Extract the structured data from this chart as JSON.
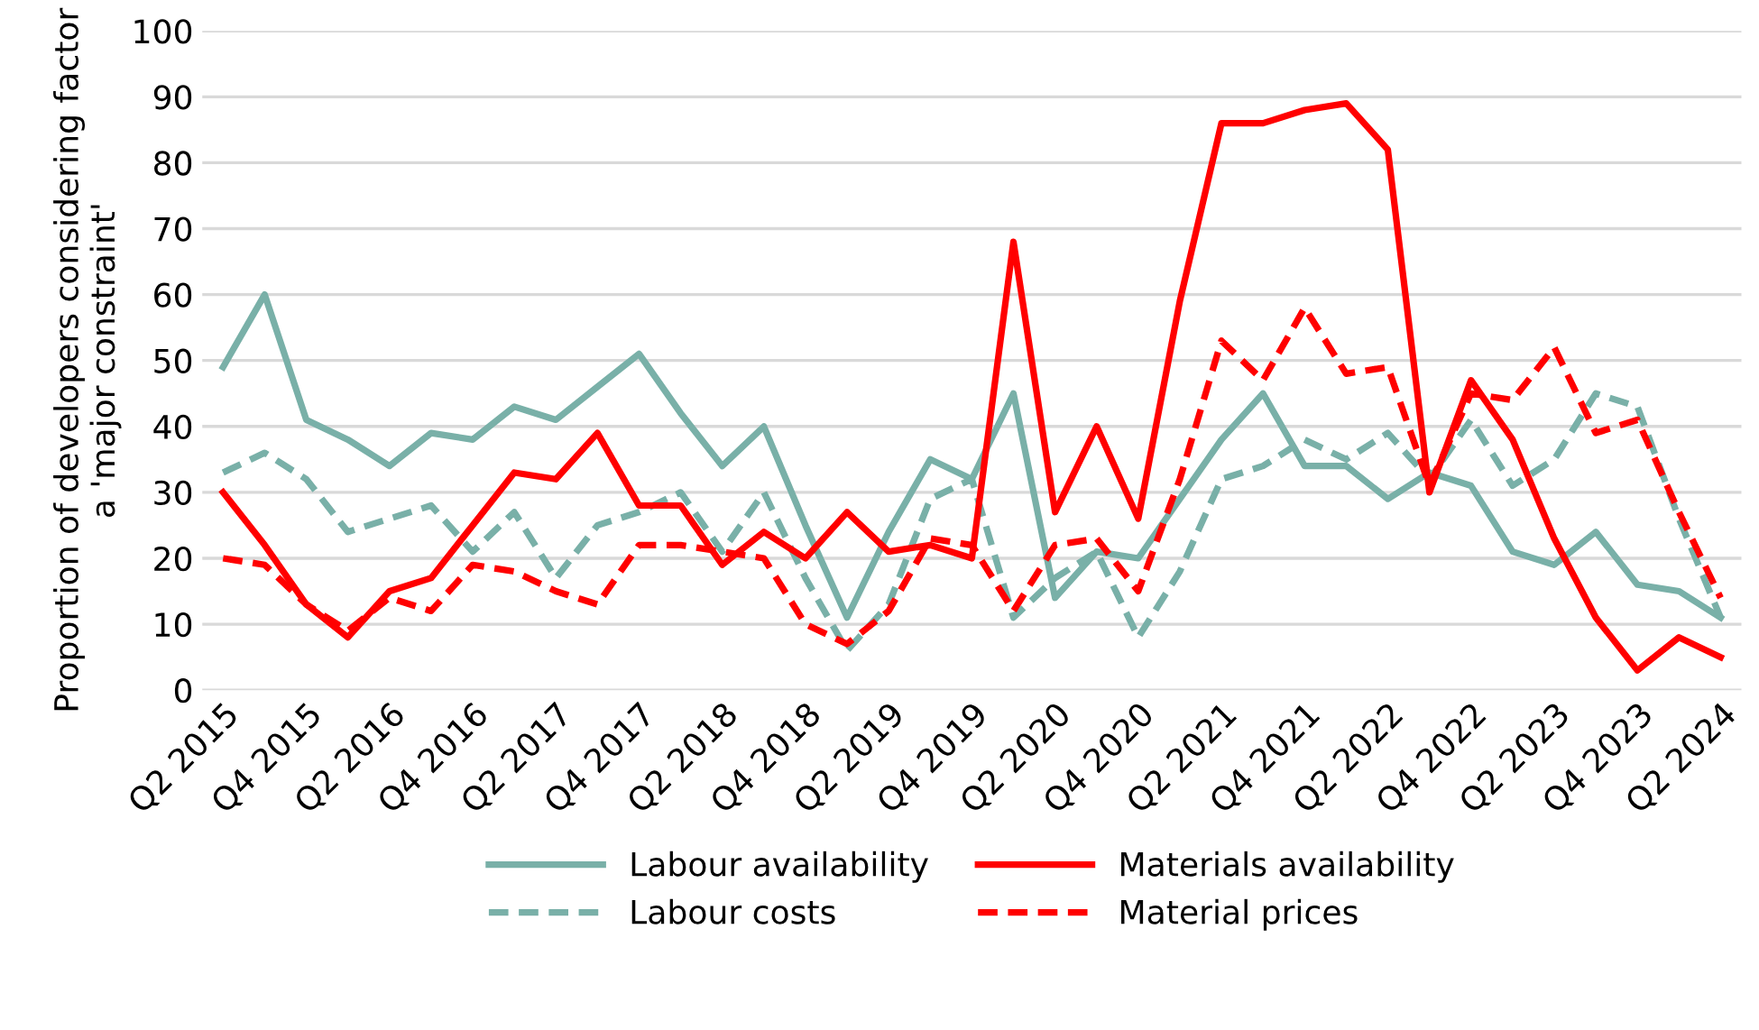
{
  "chart_data": {
    "type": "line",
    "ylabel": "Proportion of developers considering factor\na 'major constraint'",
    "categories": [
      "Q2 2015",
      null,
      "Q4 2015",
      null,
      "Q2 2016",
      null,
      "Q4 2016",
      null,
      "Q2 2017",
      null,
      "Q4 2017",
      null,
      "Q2 2018",
      null,
      "Q4 2018",
      null,
      "Q2 2019",
      null,
      "Q4 2019",
      null,
      "Q2 2020",
      null,
      "Q4 2020",
      null,
      "Q2 2021",
      null,
      "Q4 2021",
      null,
      "Q2 2022",
      null,
      "Q4 2022",
      null,
      "Q2 2023",
      null,
      "Q4 2023",
      null,
      "Q2 2024"
    ],
    "series": [
      {
        "name": "Labour availability",
        "color": "#79b0a8",
        "line_style": "solid",
        "values": [
          49,
          60,
          41,
          38,
          34,
          39,
          38,
          43,
          41,
          46,
          51,
          42,
          34,
          40,
          25,
          11,
          24,
          35,
          32,
          45,
          14,
          21,
          20,
          29,
          38,
          45,
          34,
          34,
          29,
          33,
          31,
          21,
          19,
          24,
          16,
          15,
          11
        ]
      },
      {
        "name": "Labour costs",
        "color": "#79b0a8",
        "line_style": "dashed",
        "values": [
          33,
          36,
          32,
          24,
          26,
          28,
          21,
          27,
          17,
          25,
          27,
          30,
          21,
          30,
          17,
          6,
          13,
          29,
          32,
          11,
          17,
          21,
          8,
          18,
          32,
          34,
          38,
          35,
          39,
          32,
          41,
          31,
          35,
          45,
          43,
          26,
          11
        ]
      },
      {
        "name": "Materials availability",
        "color": "#ff0000",
        "line_style": "solid",
        "values": [
          30,
          22,
          13,
          8,
          15,
          17,
          25,
          33,
          32,
          39,
          28,
          28,
          19,
          24,
          20,
          27,
          21,
          22,
          20,
          68,
          27,
          40,
          26,
          59,
          86,
          86,
          88,
          89,
          82,
          30,
          47,
          38,
          23,
          11,
          3,
          8,
          5
        ]
      },
      {
        "name": "Material prices",
        "color": "#ff0000",
        "line_style": "dashed",
        "values": [
          20,
          19,
          13,
          9,
          14,
          12,
          19,
          18,
          15,
          13,
          22,
          22,
          21,
          20,
          10,
          7,
          12,
          23,
          22,
          12,
          22,
          23,
          15,
          32,
          53,
          47,
          58,
          48,
          49,
          31,
          45,
          44,
          52,
          39,
          41,
          27,
          14
        ]
      }
    ],
    "ylim": [
      0,
      100
    ],
    "yticks": [
      0,
      10,
      20,
      30,
      40,
      50,
      60,
      70,
      80,
      90,
      100
    ],
    "grid": "y",
    "legend": "bottom",
    "marker": "none"
  }
}
